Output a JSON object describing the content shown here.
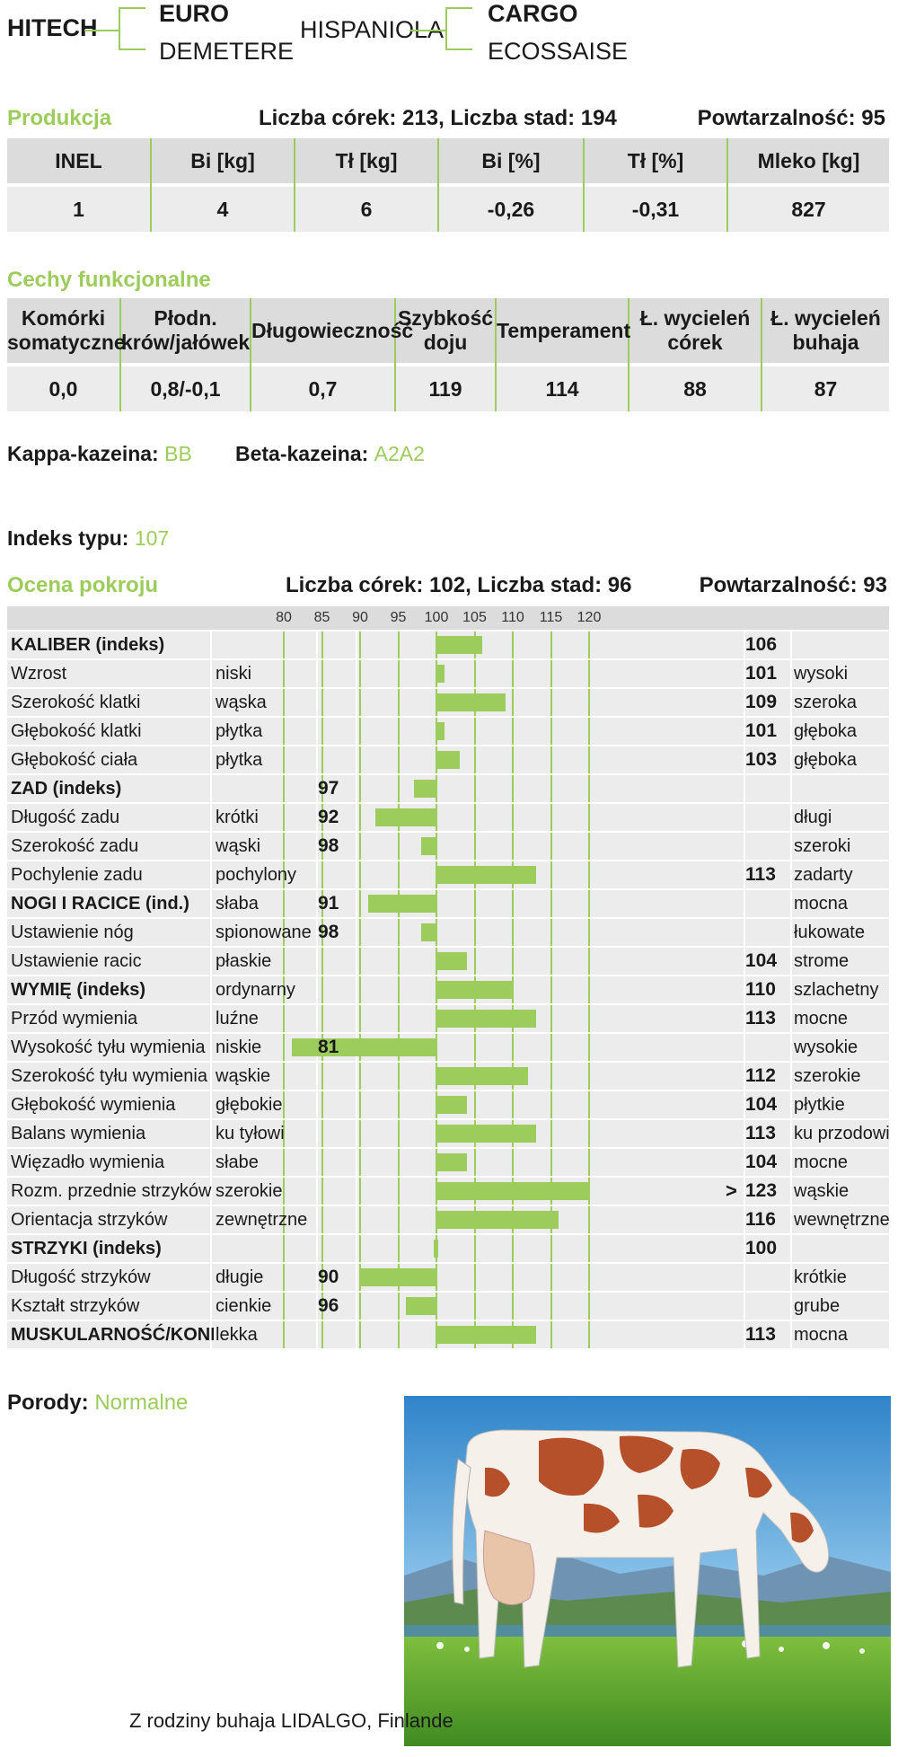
{
  "pedigree": {
    "bull": "HITECH",
    "sire": "EURO",
    "sire_dam": "DEMETERE",
    "dam": "HISPANIOLA",
    "dam_sire": "CARGO",
    "dam_dam": "ECOSSAISE"
  },
  "production": {
    "title": "Produkcja",
    "info": "Liczba córek: 213, Liczba stad: 194",
    "repeat": "Powtarzalność: 95",
    "headers": [
      "INEL",
      "Bi [kg]",
      "Tł [kg]",
      "Bi [%]",
      "Tł [%]",
      "Mleko [kg]"
    ],
    "values": [
      "1",
      "4",
      "6",
      "-0,26",
      "-0,31",
      "827"
    ]
  },
  "functional": {
    "title": "Cechy funkcjonalne",
    "headers": [
      [
        "Komórki",
        "somatyczne"
      ],
      [
        "Płodn.",
        "krów/jałówek"
      ],
      [
        "Długowieczność",
        ""
      ],
      [
        "Szybkość",
        "doju"
      ],
      [
        "Temperament",
        ""
      ],
      [
        "Ł. wycieleń",
        "córek"
      ],
      [
        "Ł. wycieleń",
        "buhaja"
      ]
    ],
    "values": [
      "0,0",
      "0,8/-0,1",
      "0,7",
      "119",
      "114",
      "88",
      "87"
    ]
  },
  "casein": {
    "kappa_label": "Kappa-kazeina:",
    "kappa_value": "BB",
    "beta_label": "Beta-kazeina:",
    "beta_value": "A2A2"
  },
  "type_index": {
    "label": "Indeks typu:",
    "value": "107"
  },
  "conformation": {
    "title": "Ocena pokroju",
    "info": "Liczba córek: 102, Liczba stad: 96",
    "repeat": "Powtarzalność: 93"
  },
  "chart_data": {
    "type": "bar",
    "title": "",
    "xlabel": "",
    "ylabel": "",
    "baseline": 100,
    "xlim": [
      80,
      120
    ],
    "ticks": [
      "80",
      "85",
      "90",
      "95",
      "100",
      "105",
      "110",
      "115",
      "120"
    ],
    "rows": [
      {
        "trait": "KALIBER (indeks)",
        "low": "",
        "high": "",
        "value": 106,
        "label": "106",
        "bold": true
      },
      {
        "trait": "Wzrost",
        "low": "niski",
        "high": "wysoki",
        "value": 101,
        "label": "101"
      },
      {
        "trait": "Szerokość klatki",
        "low": "wąska",
        "high": "szeroka",
        "value": 109,
        "label": "109"
      },
      {
        "trait": "Głębokość klatki",
        "low": "płytka",
        "high": "głęboka",
        "value": 101,
        "label": "101"
      },
      {
        "trait": "Głębokość ciała",
        "low": "płytka",
        "high": "głęboka",
        "value": 103,
        "label": "103"
      },
      {
        "trait": "ZAD (indeks)",
        "low": "",
        "high": "",
        "value": 97,
        "label": "97",
        "bold": true
      },
      {
        "trait": "Długość zadu",
        "low": "krótki",
        "high": "długi",
        "value": 92,
        "label": "92"
      },
      {
        "trait": "Szerokość zadu",
        "low": "wąski",
        "high": "szeroki",
        "value": 98,
        "label": "98"
      },
      {
        "trait": "Pochylenie zadu",
        "low": "pochylony",
        "high": "zadarty",
        "value": 113,
        "label": "113"
      },
      {
        "trait": "NOGI I RACICE (ind.)",
        "low": "słaba",
        "high": "mocna",
        "value": 91,
        "label": "91",
        "bold": true
      },
      {
        "trait": "Ustawienie nóg",
        "low": "spionowane",
        "high": "łukowate",
        "value": 98,
        "label": "98"
      },
      {
        "trait": "Ustawienie racic",
        "low": "płaskie",
        "high": "strome",
        "value": 104,
        "label": "104"
      },
      {
        "trait": "WYMIĘ (indeks)",
        "low": "ordynarny",
        "high": "szlachetny",
        "value": 110,
        "label": "110",
        "bold": true
      },
      {
        "trait": "Przód wymienia",
        "low": "luźne",
        "high": "mocne",
        "value": 113,
        "label": "113"
      },
      {
        "trait": "Wysokość tyłu wymienia",
        "low": "niskie",
        "high": "wysokie",
        "value": 81,
        "label": "81"
      },
      {
        "trait": "Szerokość tyłu wymienia",
        "low": "wąskie",
        "high": "szerokie",
        "value": 112,
        "label": "112"
      },
      {
        "trait": "Głębokość wymienia",
        "low": "głębokie",
        "high": "płytkie",
        "value": 104,
        "label": "104"
      },
      {
        "trait": "Balans wymienia",
        "low": "ku tyłowi",
        "high": "ku przodowi",
        "value": 113,
        "label": "113"
      },
      {
        "trait": "Więzadło wymienia",
        "low": "słabe",
        "high": "mocne",
        "value": 104,
        "label": "104"
      },
      {
        "trait": "Rozm. przednie strzyków",
        "low": "szerokie",
        "high": "wąskie",
        "value": 123,
        "label": "123",
        "marker": ">"
      },
      {
        "trait": "Orientacja strzyków",
        "low": "zewnętrzne",
        "high": "wewnętrzne",
        "value": 116,
        "label": "116"
      },
      {
        "trait": "STRZYKI (indeks)",
        "low": "",
        "high": "",
        "value": 100,
        "label": "100",
        "bold": true
      },
      {
        "trait": "Długość strzyków",
        "low": "długie",
        "high": "krótkie",
        "value": 90,
        "label": "90"
      },
      {
        "trait": "Kształt strzyków",
        "low": "cienkie",
        "high": "grube",
        "value": 96,
        "label": "96"
      },
      {
        "trait": "MUSKULARNOŚĆ/KONDYCJA",
        "low": "lekka",
        "high": "mocna",
        "value": 113,
        "label": "113",
        "bold": true
      }
    ]
  },
  "calving": {
    "label": "Porody:",
    "value": "Normalne"
  },
  "photo": {
    "caption": "Z rodziny buhaja LIDALGO, Finlande"
  },
  "colors": {
    "accent": "#9ccc5c",
    "header_bg": "#dcdcdc",
    "row_bg": "#ececec"
  }
}
